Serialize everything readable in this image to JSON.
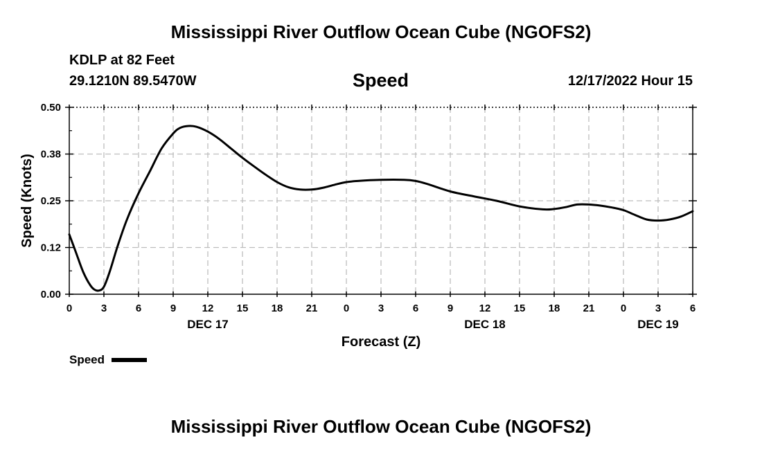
{
  "header": {
    "title": "Mississippi River Outflow Ocean Cube (NGOFS2)",
    "station": "KDLP at 82 Feet",
    "coords": "29.1210N  89.5470W",
    "variable": "Speed",
    "datetime": "12/17/2022 Hour 15"
  },
  "footer": {
    "title": "Mississippi River Outflow Ocean Cube (NGOFS2)"
  },
  "legend": {
    "label": "Speed"
  },
  "chart_data": {
    "type": "line",
    "title": "Speed",
    "xlabel": "Forecast (Z)",
    "ylabel": "Speed (Knots)",
    "xlim": [
      0,
      54
    ],
    "ylim": [
      0,
      0.5
    ],
    "y_ticks": [
      0.0,
      0.125,
      0.25,
      0.375,
      0.5
    ],
    "y_tick_labels": [
      "0.00",
      "0.12",
      "0.25",
      "0.38",
      "0.50"
    ],
    "x_ticks": [
      0,
      3,
      6,
      9,
      12,
      15,
      18,
      21,
      24,
      27,
      30,
      33,
      36,
      39,
      42,
      45,
      48,
      51,
      54
    ],
    "x_tick_labels": [
      "0",
      "3",
      "6",
      "9",
      "12",
      "15",
      "18",
      "21",
      "0",
      "3",
      "6",
      "9",
      "12",
      "15",
      "18",
      "21",
      "0",
      "3",
      "6"
    ],
    "date_labels": [
      {
        "x": 12,
        "label": "DEC 17"
      },
      {
        "x": 36,
        "label": "DEC 18"
      },
      {
        "x": 51,
        "label": "DEC 19"
      }
    ],
    "grid": true,
    "series": [
      {
        "name": "Speed",
        "x": [
          0,
          0.6,
          1.2,
          1.8,
          2.2,
          2.6,
          3.0,
          3.5,
          4.2,
          5.0,
          6.0,
          7.0,
          8.0,
          9.0,
          9.6,
          10.3,
          11.0,
          12.0,
          13.0,
          14.0,
          15.0,
          16.0,
          17.0,
          18.0,
          19.0,
          20.0,
          21.0,
          22.0,
          23.0,
          24.0,
          25.0,
          27.0,
          29.0,
          30.0,
          31.0,
          33.0,
          35.0,
          37.0,
          39.0,
          41.0,
          42.0,
          43.0,
          44.0,
          45.0,
          46.0,
          47.0,
          48.0,
          49.0,
          50.0,
          51.0,
          52.0,
          53.0,
          54.0
        ],
        "values": [
          0.16,
          0.11,
          0.06,
          0.025,
          0.012,
          0.01,
          0.02,
          0.06,
          0.13,
          0.2,
          0.27,
          0.33,
          0.39,
          0.43,
          0.445,
          0.45,
          0.448,
          0.435,
          0.415,
          0.39,
          0.365,
          0.342,
          0.32,
          0.3,
          0.286,
          0.28,
          0.28,
          0.285,
          0.293,
          0.3,
          0.303,
          0.306,
          0.306,
          0.303,
          0.295,
          0.275,
          0.262,
          0.25,
          0.235,
          0.227,
          0.228,
          0.233,
          0.24,
          0.24,
          0.237,
          0.232,
          0.225,
          0.212,
          0.2,
          0.197,
          0.2,
          0.208,
          0.222
        ]
      }
    ]
  }
}
